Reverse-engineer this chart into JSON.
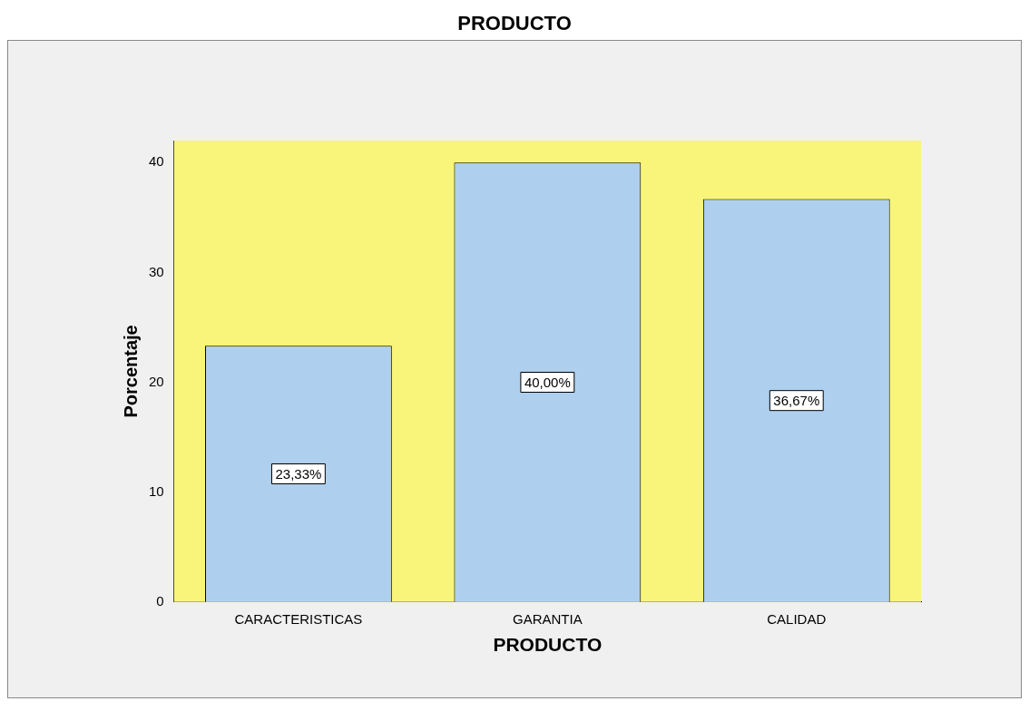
{
  "chart_data": {
    "type": "bar",
    "title": "PRODUCTO",
    "xlabel": "PRODUCTO",
    "ylabel": "Porcentaje",
    "categories": [
      "CARACTERISTICAS",
      "GARANTIA",
      "CALIDAD"
    ],
    "values": [
      23.33,
      40,
      36.67
    ],
    "value_labels": [
      "23,33%",
      "40,00%",
      "36,67%"
    ],
    "color": "#aecfee",
    "bands": [
      {
        "axis": "y",
        "from": 0,
        "to": 42,
        "color": "#f8f57a"
      }
    ],
    "ylim": [
      0,
      42
    ],
    "yticks": [
      0,
      10,
      20,
      30,
      40
    ],
    "grid": false,
    "legend": false
  }
}
